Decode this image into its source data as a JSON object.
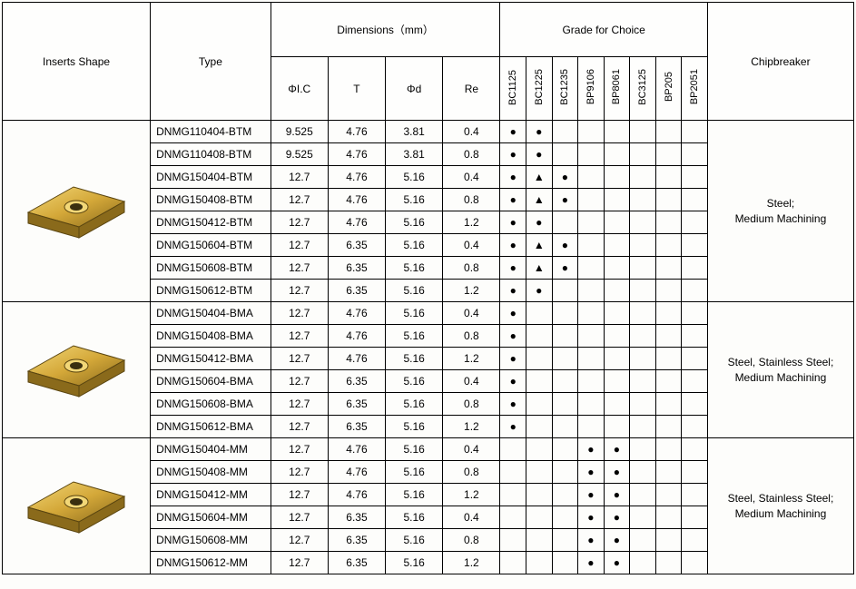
{
  "headers": {
    "shape": "Inserts Shape",
    "type": "Type",
    "dimensions": "Dimensions（mm）",
    "grade": "Grade for Choice",
    "chipbreaker": "Chipbreaker",
    "dim_cols": [
      "ΦI.C",
      "T",
      "Φd",
      "Re"
    ],
    "grade_cols": [
      "BC1125",
      "BC1225",
      "BC1235",
      "BP9106",
      "BP8061",
      "BC3125",
      "BP205",
      "BP2051"
    ]
  },
  "marks": {
    "dot": "●",
    "tri": "▲"
  },
  "colors": {
    "insert_base": "#d4a839",
    "insert_light": "#f2d777",
    "insert_dark": "#8a6a1b",
    "insert_edge": "#5a4510",
    "hole": "#3a2f10"
  },
  "groups": [
    {
      "chipbreaker": "Steel;\nMedium Machining",
      "rows": [
        {
          "type": "DNMG110404-BTM",
          "ic": "9.525",
          "t": "4.76",
          "d": "3.81",
          "re": "0.4",
          "g": [
            "●",
            "●",
            "",
            "",
            "",
            "",
            "",
            ""
          ]
        },
        {
          "type": "DNMG110408-BTM",
          "ic": "9.525",
          "t": "4.76",
          "d": "3.81",
          "re": "0.8",
          "g": [
            "●",
            "●",
            "",
            "",
            "",
            "",
            "",
            ""
          ]
        },
        {
          "type": "DNMG150404-BTM",
          "ic": "12.7",
          "t": "4.76",
          "d": "5.16",
          "re": "0.4",
          "g": [
            "●",
            "▲",
            "●",
            "",
            "",
            "",
            "",
            ""
          ]
        },
        {
          "type": "DNMG150408-BTM",
          "ic": "12.7",
          "t": "4.76",
          "d": "5.16",
          "re": "0.8",
          "g": [
            "●",
            "▲",
            "●",
            "",
            "",
            "",
            "",
            ""
          ]
        },
        {
          "type": "DNMG150412-BTM",
          "ic": "12.7",
          "t": "4.76",
          "d": "5.16",
          "re": "1.2",
          "g": [
            "●",
            "●",
            "",
            "",
            "",
            "",
            "",
            ""
          ]
        },
        {
          "type": "DNMG150604-BTM",
          "ic": "12.7",
          "t": "6.35",
          "d": "5.16",
          "re": "0.4",
          "g": [
            "●",
            "▲",
            "●",
            "",
            "",
            "",
            "",
            ""
          ]
        },
        {
          "type": "DNMG150608-BTM",
          "ic": "12.7",
          "t": "6.35",
          "d": "5.16",
          "re": "0.8",
          "g": [
            "●",
            "▲",
            "●",
            "",
            "",
            "",
            "",
            ""
          ]
        },
        {
          "type": "DNMG150612-BTM",
          "ic": "12.7",
          "t": "6.35",
          "d": "5.16",
          "re": "1.2",
          "g": [
            "●",
            "●",
            "",
            "",
            "",
            "",
            "",
            ""
          ]
        }
      ]
    },
    {
      "chipbreaker": "Steel, Stainless Steel;\nMedium Machining",
      "rows": [
        {
          "type": "DNMG150404-BMA",
          "ic": "12.7",
          "t": "4.76",
          "d": "5.16",
          "re": "0.4",
          "g": [
            "●",
            "",
            "",
            "",
            "",
            "",
            "",
            ""
          ]
        },
        {
          "type": "DNMG150408-BMA",
          "ic": "12.7",
          "t": "4.76",
          "d": "5.16",
          "re": "0.8",
          "g": [
            "●",
            "",
            "",
            "",
            "",
            "",
            "",
            ""
          ]
        },
        {
          "type": "DNMG150412-BMA",
          "ic": "12.7",
          "t": "4.76",
          "d": "5.16",
          "re": "1.2",
          "g": [
            "●",
            "",
            "",
            "",
            "",
            "",
            "",
            ""
          ]
        },
        {
          "type": "DNMG150604-BMA",
          "ic": "12.7",
          "t": "6.35",
          "d": "5.16",
          "re": "0.4",
          "g": [
            "●",
            "",
            "",
            "",
            "",
            "",
            "",
            ""
          ]
        },
        {
          "type": "DNMG150608-BMA",
          "ic": "12.7",
          "t": "6.35",
          "d": "5.16",
          "re": "0.8",
          "g": [
            "●",
            "",
            "",
            "",
            "",
            "",
            "",
            ""
          ]
        },
        {
          "type": "DNMG150612-BMA",
          "ic": "12.7",
          "t": "6.35",
          "d": "5.16",
          "re": "1.2",
          "g": [
            "●",
            "",
            "",
            "",
            "",
            "",
            "",
            ""
          ]
        }
      ]
    },
    {
      "chipbreaker": "Steel, Stainless Steel;\nMedium Machining",
      "rows": [
        {
          "type": "DNMG150404-MM",
          "ic": "12.7",
          "t": "4.76",
          "d": "5.16",
          "re": "0.4",
          "g": [
            "",
            "",
            "",
            "●",
            "●",
            "",
            "",
            ""
          ]
        },
        {
          "type": "DNMG150408-MM",
          "ic": "12.7",
          "t": "4.76",
          "d": "5.16",
          "re": "0.8",
          "g": [
            "",
            "",
            "",
            "●",
            "●",
            "",
            "",
            ""
          ]
        },
        {
          "type": "DNMG150412-MM",
          "ic": "12.7",
          "t": "4.76",
          "d": "5.16",
          "re": "1.2",
          "g": [
            "",
            "",
            "",
            "●",
            "●",
            "",
            "",
            ""
          ]
        },
        {
          "type": "DNMG150604-MM",
          "ic": "12.7",
          "t": "6.35",
          "d": "5.16",
          "re": "0.4",
          "g": [
            "",
            "",
            "",
            "●",
            "●",
            "",
            "",
            ""
          ]
        },
        {
          "type": "DNMG150608-MM",
          "ic": "12.7",
          "t": "6.35",
          "d": "5.16",
          "re": "0.8",
          "g": [
            "",
            "",
            "",
            "●",
            "●",
            "",
            "",
            ""
          ]
        },
        {
          "type": "DNMG150612-MM",
          "ic": "12.7",
          "t": "6.35",
          "d": "5.16",
          "re": "1.2",
          "g": [
            "",
            "",
            "",
            "●",
            "●",
            "",
            "",
            ""
          ]
        }
      ]
    }
  ]
}
